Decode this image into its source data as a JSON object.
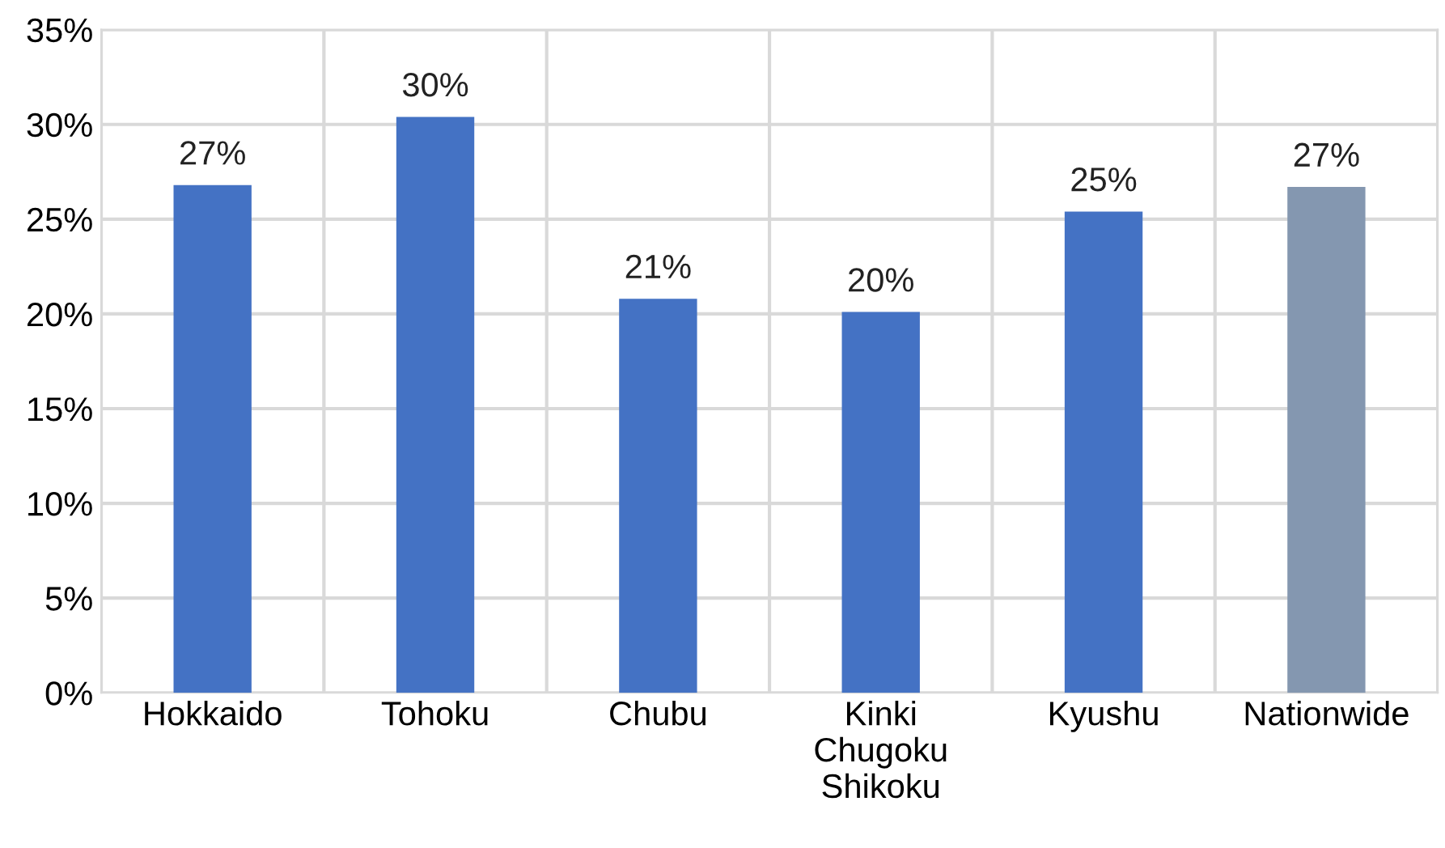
{
  "chart_data": {
    "type": "bar",
    "categories": [
      "Hokkaido",
      "Tohoku",
      "Chubu",
      "Kinki\nChugoku\nShikoku",
      "Kyushu",
      "Nationwide"
    ],
    "values": [
      26.8,
      30.4,
      20.8,
      20.1,
      25.4,
      26.7
    ],
    "colors": [
      "#4472c4",
      "#4472c4",
      "#4472c4",
      "#4472c4",
      "#4472c4",
      "#8497b0"
    ],
    "value_labels": [
      "27%",
      "30%",
      "21%",
      "20%",
      "25%",
      "27%"
    ],
    "ylim": [
      0,
      35
    ],
    "yticks": [
      {
        "value": 0,
        "label": "0%"
      },
      {
        "value": 5,
        "label": "5%"
      },
      {
        "value": 10,
        "label": "10%"
      },
      {
        "value": 15,
        "label": "15%"
      },
      {
        "value": 20,
        "label": "20%"
      },
      {
        "value": 25,
        "label": "25%"
      },
      {
        "value": 30,
        "label": "30%"
      },
      {
        "value": 35,
        "label": "35%"
      }
    ],
    "grid": true
  }
}
